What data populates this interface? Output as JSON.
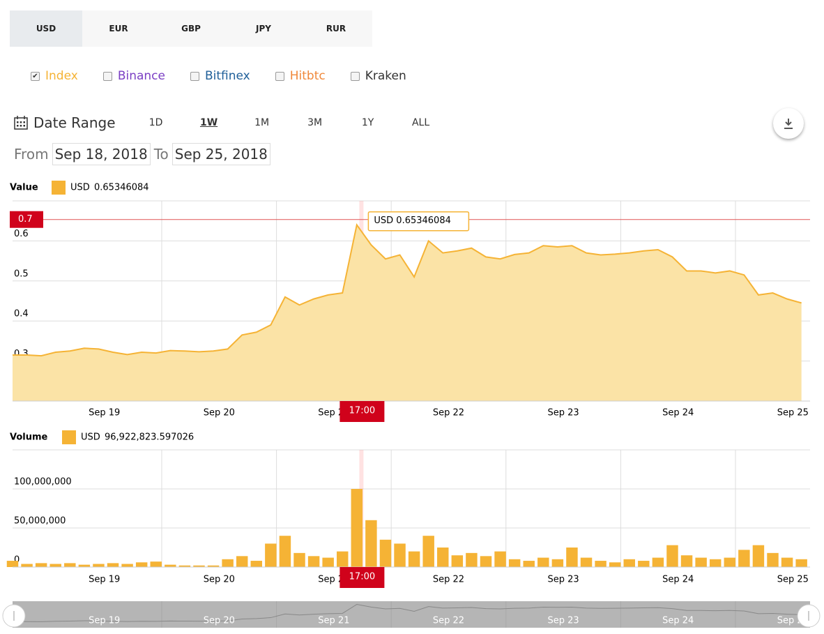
{
  "currency_tabs": [
    {
      "label": "USD",
      "selected": true
    },
    {
      "label": "EUR",
      "selected": false
    },
    {
      "label": "GBP",
      "selected": false
    },
    {
      "label": "JPY",
      "selected": false
    },
    {
      "label": "RUR",
      "selected": false
    }
  ],
  "exchanges": [
    {
      "label": "Index",
      "checked": true,
      "color": "#f5b335"
    },
    {
      "label": "Binance",
      "checked": false,
      "color": "#7b3fc4"
    },
    {
      "label": "Bitfinex",
      "checked": false,
      "color": "#1f5f99"
    },
    {
      "label": "Hitbtc",
      "checked": false,
      "color": "#f0883a"
    },
    {
      "label": "Kraken",
      "checked": false,
      "color": "#333333"
    }
  ],
  "date_range": {
    "label": "Date Range",
    "options": [
      {
        "label": "1D",
        "selected": false
      },
      {
        "label": "1W",
        "selected": true
      },
      {
        "label": "1M",
        "selected": false
      },
      {
        "label": "3M",
        "selected": false
      },
      {
        "label": "1Y",
        "selected": false
      },
      {
        "label": "ALL",
        "selected": false
      }
    ]
  },
  "from": {
    "label": "From",
    "value": "Sep 18, 2018"
  },
  "to": {
    "label": "To",
    "value": "Sep 25, 2018"
  },
  "chart_data": [
    {
      "type": "area",
      "y_axis_label": "Value",
      "x": [
        18.2,
        18.325,
        18.45,
        18.575,
        18.7,
        18.825,
        18.95,
        19.075,
        19.2,
        19.325,
        19.45,
        19.575,
        19.7,
        19.825,
        19.95,
        20.075,
        20.2,
        20.325,
        20.45,
        20.575,
        20.7,
        20.825,
        20.95,
        21.075,
        21.2,
        21.325,
        21.45,
        21.575,
        21.7,
        21.825,
        21.95,
        22.075,
        22.2,
        22.325,
        22.45,
        22.575,
        22.7,
        22.825,
        22.95,
        23.075,
        23.2,
        23.325,
        23.45,
        23.575,
        23.7,
        23.825,
        23.95,
        24.075,
        24.2,
        24.325,
        24.45,
        24.575,
        24.7,
        24.825,
        24.95,
        25.075
      ],
      "series": [
        {
          "name": "USD",
          "color": "#f5b335",
          "values": [
            0.315,
            0.315,
            0.313,
            0.322,
            0.325,
            0.332,
            0.33,
            0.322,
            0.316,
            0.322,
            0.32,
            0.326,
            0.325,
            0.323,
            0.325,
            0.33,
            0.365,
            0.372,
            0.39,
            0.46,
            0.44,
            0.455,
            0.465,
            0.47,
            0.64,
            0.59,
            0.555,
            0.565,
            0.51,
            0.6,
            0.57,
            0.575,
            0.582,
            0.56,
            0.555,
            0.566,
            0.57,
            0.588,
            0.585,
            0.588,
            0.57,
            0.565,
            0.567,
            0.57,
            0.575,
            0.578,
            0.56,
            0.525,
            0.525,
            0.52,
            0.525,
            0.515,
            0.465,
            0.47,
            0.455,
            0.445
          ]
        }
      ],
      "legend_value": 0.65346084,
      "xlim": [
        18.2,
        25.15
      ],
      "ylim": [
        0.2,
        0.7
      ],
      "xticks": [
        {
          "value": 19,
          "label": "Sep 19"
        },
        {
          "value": 20,
          "label": "Sep 20"
        },
        {
          "value": 21,
          "label": "Sep 21"
        },
        {
          "value": 22,
          "label": "Sep 22"
        },
        {
          "value": 23,
          "label": "Sep 23"
        },
        {
          "value": 24,
          "label": "Sep 24"
        },
        {
          "value": 25,
          "label": "Sep 25"
        }
      ],
      "xgrid": [
        19.5,
        20.5,
        21.5,
        22.5,
        23.5,
        24.5
      ],
      "yticks": [
        0.2,
        0.3,
        0.4,
        0.5,
        0.6
      ],
      "crosshair": {
        "x": {
          "value": 21.24,
          "label": "17:00"
        },
        "y": {
          "value": 0.65346084,
          "label": "0.7"
        }
      },
      "tooltip": "USD 0.65346084"
    },
    {
      "type": "bar",
      "y_axis_label": "Volume",
      "x": [
        18.2,
        18.325,
        18.45,
        18.575,
        18.7,
        18.825,
        18.95,
        19.075,
        19.2,
        19.325,
        19.45,
        19.575,
        19.7,
        19.825,
        19.95,
        20.075,
        20.2,
        20.325,
        20.45,
        20.575,
        20.7,
        20.825,
        20.95,
        21.075,
        21.2,
        21.325,
        21.45,
        21.575,
        21.7,
        21.825,
        21.95,
        22.075,
        22.2,
        22.325,
        22.45,
        22.575,
        22.7,
        22.825,
        22.95,
        23.075,
        23.2,
        23.325,
        23.45,
        23.575,
        23.7,
        23.825,
        23.95,
        24.075,
        24.2,
        24.325,
        24.45,
        24.575,
        24.7,
        24.825,
        24.95,
        25.075
      ],
      "series": [
        {
          "name": "USD",
          "color": "#f5b335",
          "values": [
            8000000,
            4000000,
            5000000,
            4000000,
            5000000,
            3000000,
            4000000,
            5000000,
            4000000,
            6000000,
            7000000,
            3000000,
            2000000,
            2000000,
            2000000,
            10000000,
            14000000,
            8000000,
            30000000,
            40000000,
            18000000,
            14000000,
            12000000,
            20000000,
            100000000,
            60000000,
            35000000,
            30000000,
            20000000,
            40000000,
            25000000,
            15000000,
            18000000,
            14000000,
            20000000,
            10000000,
            8000000,
            12000000,
            10000000,
            25000000,
            12000000,
            8000000,
            6000000,
            10000000,
            8000000,
            12000000,
            28000000,
            15000000,
            12000000,
            10000000,
            12000000,
            22000000,
            28000000,
            18000000,
            12000000,
            10000000
          ]
        }
      ],
      "legend_value": {
        "value": 96922823.597026,
        "label": "96,922,823.597026"
      },
      "xlim": [
        18.2,
        25.15
      ],
      "ylim": [
        0,
        150000000
      ],
      "xticks": [
        {
          "value": 19,
          "label": "Sep 19"
        },
        {
          "value": 20,
          "label": "Sep 20"
        },
        {
          "value": 21,
          "label": "Sep 21"
        },
        {
          "value": 22,
          "label": "Sep 22"
        },
        {
          "value": 23,
          "label": "Sep 23"
        },
        {
          "value": 24,
          "label": "Sep 24"
        },
        {
          "value": 25,
          "label": "Sep 25"
        }
      ],
      "xgrid": [
        19.5,
        20.5,
        21.5,
        22.5,
        23.5,
        24.5
      ],
      "yticks": [
        0,
        {
          "value": 50000000,
          "label": "50,000,000"
        },
        {
          "value": 100000000,
          "label": "100,000,000"
        }
      ],
      "crosshair": {
        "x": {
          "value": 21.24,
          "label": "17:00"
        }
      }
    }
  ]
}
